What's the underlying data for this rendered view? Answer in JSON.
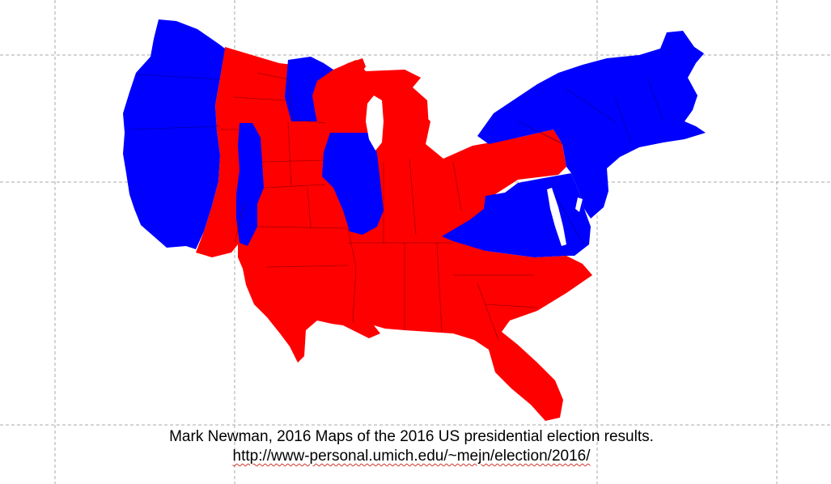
{
  "map": {
    "colors": {
      "republican": "#ff0000",
      "democrat": "#0000ff",
      "background": "#ffffff",
      "guide_line": "#a8a8a8"
    }
  },
  "caption": {
    "line1": "Mark Newman, 2016 Maps of the 2016 US presidential election results.",
    "url": "http://www-personal.umich.edu/~mejn/election/2016/"
  }
}
